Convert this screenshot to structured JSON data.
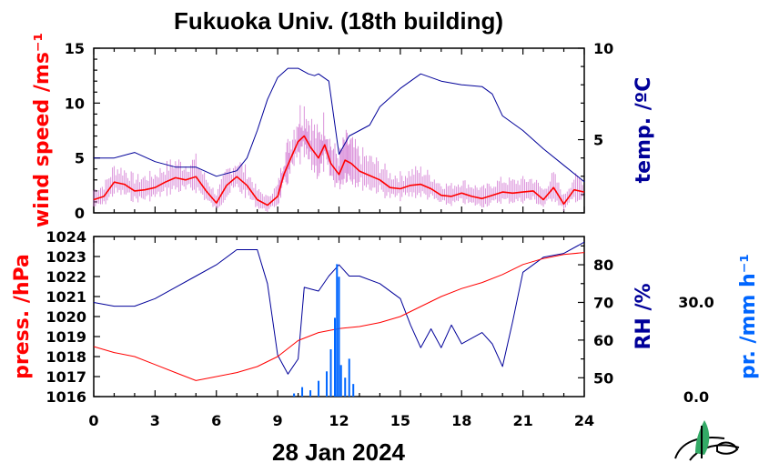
{
  "title": "Fukuoka Univ. (18th building)",
  "date_label": "28 Jan 2024",
  "colors": {
    "wind": "#ff0000",
    "wind_raw": "#cc66cc",
    "temp": "#000099",
    "press": "#ff0000",
    "rh": "#000099",
    "precip": "#0066ff",
    "frame": "#000000",
    "logo_leaf": "#33aa66"
  },
  "icons": {
    "logo": "leaf-logo-icon"
  },
  "chart_data": [
    {
      "type": "line",
      "name": "upper-panel",
      "xlim": [
        0,
        24
      ],
      "ylabel_left": "wind speed /ms⁻¹",
      "ylabel_right": "temp. /ºC",
      "ylim_left": [
        0,
        15
      ],
      "ylim_right": [
        1,
        10
      ],
      "yticks_left": [
        "0",
        "5",
        "10",
        "15"
      ],
      "yticks_right": [
        "5",
        "10"
      ],
      "wind_speed": {
        "x": [
          0,
          0.5,
          1,
          1.5,
          2,
          2.5,
          3,
          3.5,
          4,
          4.5,
          5,
          5.5,
          6,
          6.5,
          7,
          7.5,
          8,
          8.5,
          9,
          9.3,
          9.6,
          10,
          10.3,
          10.6,
          11,
          11.3,
          11.6,
          12,
          12.3,
          12.6,
          13,
          13.5,
          14,
          14.5,
          15,
          15.5,
          16,
          16.5,
          17,
          17.5,
          18,
          18.5,
          19,
          19.5,
          20,
          20.5,
          21,
          21.5,
          22,
          22.5,
          23,
          23.5,
          24
        ],
        "y": [
          1.2,
          1.5,
          2.8,
          2.6,
          2.0,
          2.1,
          2.3,
          2.8,
          3.2,
          3.0,
          3.3,
          2.0,
          0.9,
          2.5,
          3.3,
          2.5,
          1.2,
          0.7,
          1.5,
          3.5,
          4.8,
          6.5,
          7.0,
          6.0,
          5.0,
          6.2,
          4.5,
          3.5,
          4.8,
          4.5,
          3.8,
          3.4,
          3.0,
          2.3,
          2.2,
          2.5,
          2.6,
          2.2,
          1.6,
          1.5,
          1.8,
          1.5,
          1.3,
          1.6,
          1.9,
          1.8,
          1.9,
          2.0,
          1.2,
          2.3,
          0.8,
          2.1,
          1.9
        ]
      },
      "temperature": {
        "x": [
          0,
          1,
          2,
          3,
          4,
          5,
          6,
          7,
          7.5,
          8,
          8.5,
          9,
          9.5,
          10,
          10.5,
          10.8,
          11,
          11.5,
          12,
          12.5,
          13,
          13.5,
          14,
          15,
          16,
          16.5,
          17,
          18,
          19,
          19.5,
          20,
          21,
          22,
          23,
          24
        ],
        "y": [
          4.0,
          4.0,
          4.3,
          3.8,
          3.5,
          3.5,
          3.0,
          3.3,
          4.0,
          5.5,
          7.2,
          8.4,
          8.9,
          8.9,
          8.6,
          8.5,
          8.6,
          8.2,
          4.2,
          5.2,
          5.5,
          5.8,
          6.8,
          7.8,
          8.6,
          8.4,
          8.2,
          8.0,
          7.9,
          7.5,
          6.3,
          5.5,
          4.5,
          3.6,
          2.7
        ]
      }
    },
    {
      "type": "line",
      "name": "lower-panel",
      "xlabel": "28 Jan 2024",
      "xlim": [
        0,
        24
      ],
      "xticks": [
        "0",
        "3",
        "6",
        "9",
        "12",
        "15",
        "18",
        "21",
        "24"
      ],
      "ylabel_left": "press. /hPa",
      "ylabel_right": "RH /%",
      "ylabel_far_right": "pr. /mm h⁻¹",
      "ylim_left": [
        1016,
        1024
      ],
      "ylim_right": [
        45,
        87.5
      ],
      "yticks_left": [
        "1016",
        "1017",
        "1018",
        "1019",
        "1020",
        "1021",
        "1022",
        "1023",
        "1024"
      ],
      "yticks_right": [
        "50",
        "60",
        "70",
        "80"
      ],
      "precip_ticks": [
        "0.0",
        "30.0"
      ],
      "pressure": {
        "x": [
          0,
          1,
          2,
          3,
          4,
          5,
          6,
          7,
          8,
          9,
          10,
          11,
          12,
          13,
          14,
          15,
          16,
          17,
          18,
          19,
          20,
          21,
          22,
          23,
          24
        ],
        "y": [
          1018.5,
          1018.2,
          1018.0,
          1017.6,
          1017.2,
          1016.8,
          1017.0,
          1017.2,
          1017.5,
          1018.0,
          1018.8,
          1019.2,
          1019.4,
          1019.5,
          1019.7,
          1020.0,
          1020.5,
          1021.0,
          1021.4,
          1021.7,
          1022.1,
          1022.6,
          1022.9,
          1023.1,
          1023.2
        ]
      },
      "relative_humidity": {
        "x": [
          0,
          1,
          2,
          3,
          4,
          5,
          6,
          7,
          8,
          8.5,
          9,
          9.5,
          10,
          10.3,
          11,
          11.5,
          12,
          12.5,
          13,
          14,
          15,
          15.5,
          16,
          16.5,
          17,
          17.5,
          18,
          19,
          19.5,
          20,
          20.5,
          21,
          22,
          23,
          24
        ],
        "y": [
          70,
          69,
          69,
          71,
          74,
          77,
          80,
          84,
          84,
          75,
          56,
          51,
          55,
          74,
          73,
          77,
          80,
          77,
          77,
          75,
          71,
          64,
          58,
          63,
          58,
          64,
          59,
          62,
          59,
          53,
          65,
          78,
          82,
          83,
          86
        ]
      },
      "precipitation": {
        "x": [
          9.8,
          10.2,
          10.6,
          11.0,
          11.4,
          11.6,
          11.8,
          11.9,
          12.0,
          12.1,
          12.3,
          12.5,
          12.7
        ],
        "y": [
          1,
          3,
          2,
          5,
          8,
          15,
          25,
          42,
          38,
          10,
          6,
          12,
          4
        ]
      }
    }
  ]
}
